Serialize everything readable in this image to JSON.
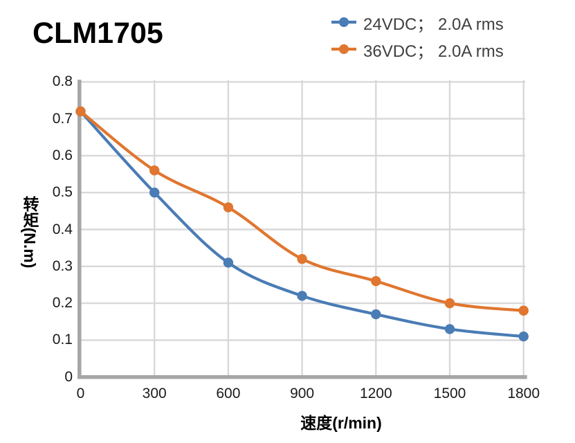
{
  "title": "CLM1705",
  "chart_data": {
    "type": "line",
    "x": [
      0,
      300,
      600,
      900,
      1200,
      1500,
      1800
    ],
    "series": [
      {
        "name": "24VDC；  2.0A rms",
        "color": "#4A7CB5",
        "values": [
          0.72,
          0.5,
          0.31,
          0.22,
          0.17,
          0.13,
          0.11
        ]
      },
      {
        "name": "36VDC；  2.0A rms",
        "color": "#E0762F",
        "values": [
          0.72,
          0.56,
          0.46,
          0.32,
          0.26,
          0.2,
          0.18
        ]
      }
    ],
    "xlabel": "速度(r/min)",
    "ylabel": "转矩(N.m)",
    "xlim": [
      0,
      1800
    ],
    "ylim": [
      0,
      0.8
    ],
    "xticks": [
      0,
      300,
      600,
      900,
      1200,
      1500,
      1800
    ],
    "yticks": [
      0,
      0.1,
      0.2,
      0.3,
      0.4,
      0.5,
      0.6,
      0.7,
      0.8
    ],
    "grid": true,
    "legend_position": "top-right",
    "marker": "circle",
    "line_style": "smooth",
    "colors": {
      "grid": "#D8D8DA",
      "axis": "#A6A6A6",
      "tick_text": "#1A1A1A",
      "legend_text": "#404040",
      "title_text": "#000000"
    }
  }
}
